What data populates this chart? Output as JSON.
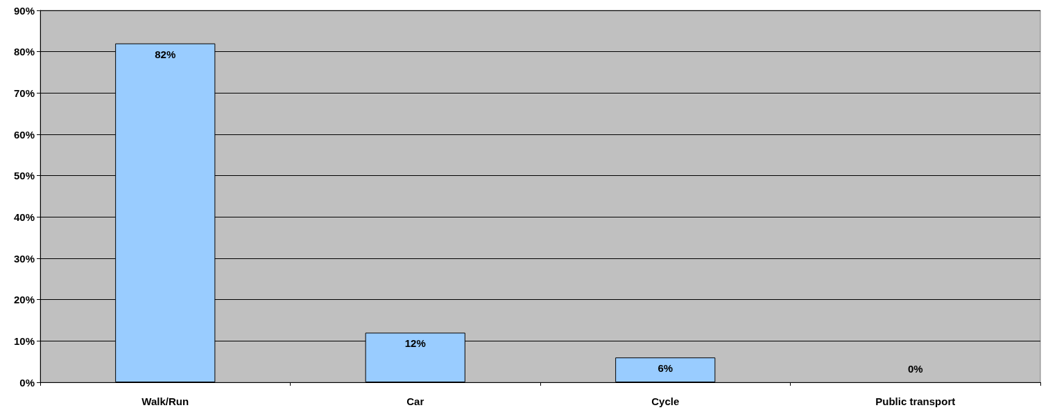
{
  "chart_data": {
    "type": "bar",
    "categories": [
      "Walk/Run",
      "Car",
      "Cycle",
      "Public transport"
    ],
    "values": [
      82,
      12,
      6,
      0
    ],
    "value_labels": [
      "82%",
      "12%",
      "6%",
      "0%"
    ],
    "color": "#99ccff",
    "ylim": [
      0,
      90
    ],
    "yticks": [
      {
        "value": 0,
        "label": "0%"
      },
      {
        "value": 10,
        "label": "10%"
      },
      {
        "value": 20,
        "label": "20%"
      },
      {
        "value": 30,
        "label": "30%"
      },
      {
        "value": 40,
        "label": "40%"
      },
      {
        "value": 50,
        "label": "50%"
      },
      {
        "value": 60,
        "label": "60%"
      },
      {
        "value": 70,
        "label": "70%"
      },
      {
        "value": 80,
        "label": "80%"
      },
      {
        "value": 90,
        "label": "90%"
      }
    ],
    "grid": "y"
  }
}
